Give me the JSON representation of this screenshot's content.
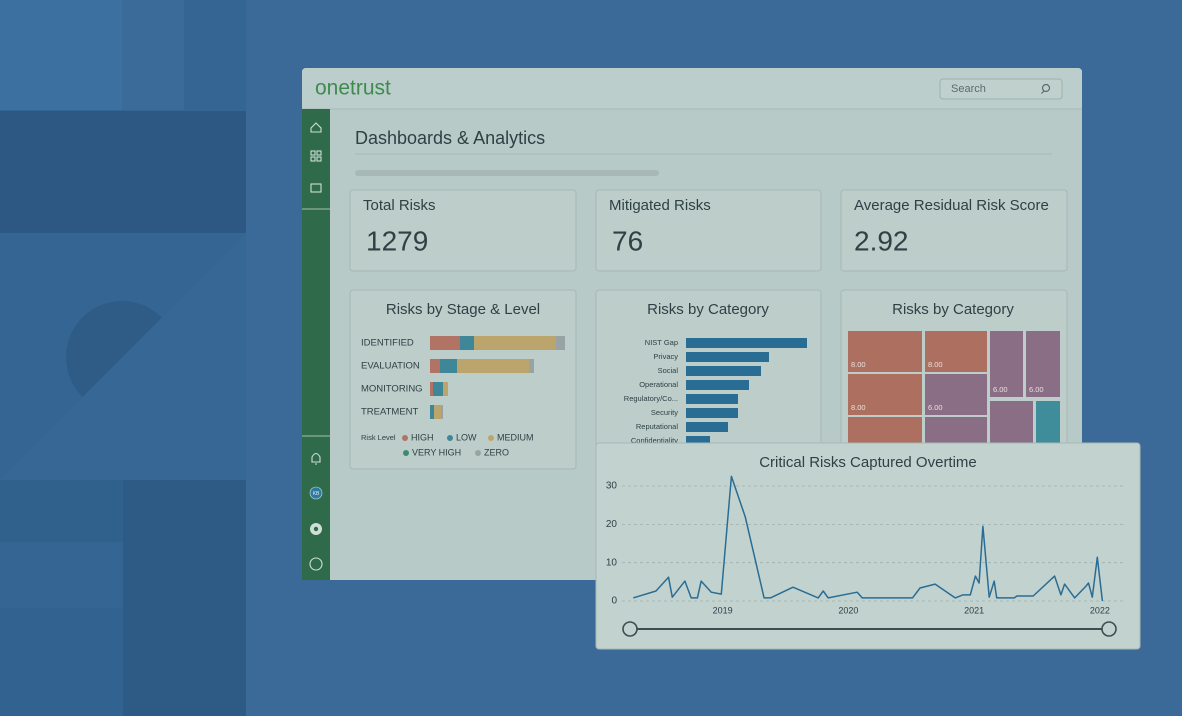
{
  "header": {
    "logo": "onetrust",
    "search": "Search"
  },
  "sidebar": {
    "avatar": "KB"
  },
  "page_title": "Dashboards & Analytics",
  "kpis": [
    {
      "label": "Total Risks",
      "value": 1279
    },
    {
      "label": "Mitigated Risks",
      "value": 76
    },
    {
      "label": "Average Residual Risk Score",
      "value": 2.92
    }
  ],
  "chart_data": [
    {
      "type": "bar",
      "orientation": "horizontal",
      "stacked": true,
      "title": "Risks by Stage & Level",
      "categories": [
        "IDENTIFIED",
        "EVALUATION",
        "MONITORING",
        "TREATMENT"
      ],
      "legend_title": "Risk Level",
      "series": [
        {
          "name": "HIGH",
          "color": "#b07364",
          "values": [
            30,
            10,
            3,
            0
          ]
        },
        {
          "name": "LOW",
          "color": "#3d8798",
          "values": [
            14,
            17,
            10,
            4
          ]
        },
        {
          "name": "MEDIUM",
          "color": "#bca56c",
          "values": [
            82,
            72,
            5,
            7
          ]
        },
        {
          "name": "VERY HIGH",
          "color": "#3f8a6e",
          "values": [
            0,
            0,
            0,
            0
          ]
        },
        {
          "name": "ZERO",
          "color": "#98a4a3",
          "values": [
            9,
            5,
            0,
            2
          ]
        }
      ]
    },
    {
      "type": "bar",
      "orientation": "horizontal",
      "title": "Risks by Category",
      "categories": [
        "NIST Gap",
        "Privacy",
        "Social",
        "Operational",
        "Regulatory/Co...",
        "Security",
        "Reputational",
        "Confidentiality"
      ],
      "values": [
        121,
        83,
        75,
        63,
        52,
        52,
        42,
        24
      ],
      "color": "#2a6d94"
    },
    {
      "type": "treemap",
      "title": "Risks by Category",
      "values": [
        8,
        8,
        6,
        6,
        8,
        6
      ],
      "value_labels": [
        "8.00",
        "8.00",
        "6.00",
        "6.00",
        "8.00",
        "6.00"
      ],
      "colors": [
        "#ad6f60",
        "#ad6f60",
        "#8a6e85",
        "#8a6e85",
        "#ad6f60",
        "#8a6e85"
      ]
    },
    {
      "type": "line",
      "title": "Critical Risks Captured Overtime",
      "x": [
        2018.29,
        2018.47,
        2018.57,
        2018.6,
        2018.7,
        2018.75,
        2018.8,
        2018.83,
        2018.91,
        2018.99,
        2019.07,
        2019.18,
        2019.33,
        2019.38,
        2019.56,
        2019.76,
        2019.8,
        2019.84,
        2020.07,
        2020.11,
        2020.51,
        2020.57,
        2020.69,
        2020.85,
        2020.91,
        2020.97,
        2021.01,
        2021.04,
        2021.07,
        2021.12,
        2021.16,
        2021.18,
        2021.32,
        2021.34,
        2021.47,
        2021.64,
        2021.69,
        2021.72,
        2021.8,
        2021.89,
        2021.91,
        2021.94,
        2021.98,
        2022.02
      ],
      "values": [
        0.8,
        2.6,
        6.2,
        1,
        5.2,
        0.8,
        0.8,
        5.2,
        2.3,
        1.8,
        32.5,
        22,
        0.8,
        0.8,
        3.6,
        0.8,
        2.6,
        0.8,
        2.3,
        0.8,
        0.8,
        3.4,
        4.4,
        0.8,
        1.6,
        1.6,
        6.5,
        4.7,
        19.5,
        1,
        5.2,
        0.8,
        0.8,
        1.3,
        1.3,
        6.5,
        1.6,
        4.4,
        0.8,
        3.9,
        4.7,
        1,
        11.4,
        0
      ],
      "color": "#2a6d94",
      "xlim": [
        2018.2,
        2022.2
      ],
      "xticks": [
        2019,
        2020,
        2021,
        2022
      ],
      "ylim": [
        0,
        34
      ],
      "yticks": [
        0,
        10,
        20,
        30
      ],
      "grid": true
    }
  ]
}
